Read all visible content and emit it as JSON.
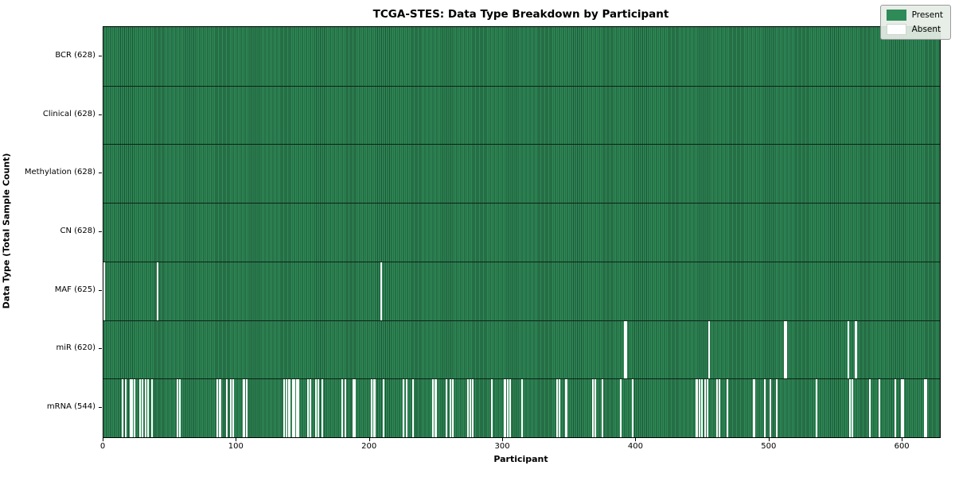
{
  "figure": {
    "title": "TCGA-STES: Data Type Breakdown by Participant",
    "xlabel": "Participant",
    "ylabel": "Data Type (Total Sample Count)"
  },
  "chart_data": {
    "type": "heatmap",
    "title": "TCGA-STES: Data Type Breakdown by Participant",
    "xlabel": "Participant",
    "ylabel": "Data Type (Total Sample Count)",
    "legend_position": "upper right",
    "grid": false,
    "n_participants": 628,
    "xlim": [
      0,
      628
    ],
    "x_ticks": [
      0,
      100,
      200,
      300,
      400,
      500,
      600
    ],
    "colors": {
      "present": "#2e8b57",
      "bar_edge": "#1d5236",
      "absent": "#ffffff",
      "row_separator": "#0d2315",
      "legend_bg": "#e5ece5"
    },
    "legend": [
      {
        "label": "Present",
        "color": "#2e8b57"
      },
      {
        "label": "Absent",
        "color": "#ffffff"
      }
    ],
    "rows": [
      {
        "name": "BCR",
        "label": "BCR (628)",
        "present_count": 628,
        "absent_participants": []
      },
      {
        "name": "Clinical",
        "label": "Clinical (628)",
        "present_count": 628,
        "absent_participants": []
      },
      {
        "name": "Methylation",
        "label": "Methylation (628)",
        "present_count": 628,
        "absent_participants": []
      },
      {
        "name": "CN",
        "label": "CN (628)",
        "present_count": 628,
        "absent_participants": []
      },
      {
        "name": "MAF",
        "label": "MAF (625)",
        "present_count": 625,
        "absent_participants": [
          0,
          40,
          208
        ]
      },
      {
        "name": "miR",
        "label": "miR (620)",
        "present_count": 620,
        "absent_participants": [
          391,
          392,
          454,
          511,
          512,
          559,
          564,
          565
        ]
      },
      {
        "name": "mRNA",
        "label": "mRNA (544)",
        "present_count": 544,
        "absent_participants": [
          14,
          16,
          20,
          21,
          23,
          27,
          29,
          31,
          33,
          36,
          55,
          57,
          85,
          87,
          92,
          95,
          97,
          105,
          107,
          135,
          137,
          139,
          142,
          143,
          145,
          146,
          153,
          155,
          159,
          161,
          164,
          179,
          181,
          187,
          188,
          201,
          203,
          210,
          225,
          227,
          232,
          247,
          249,
          257,
          260,
          262,
          273,
          275,
          277,
          291,
          301,
          303,
          305,
          314,
          340,
          342,
          347,
          367,
          369,
          374,
          388,
          397,
          445,
          447,
          449,
          451,
          453,
          460,
          462,
          468,
          488,
          496,
          500,
          505,
          535,
          560,
          562,
          575,
          582,
          594,
          599,
          600,
          616,
          617
        ]
      }
    ]
  }
}
